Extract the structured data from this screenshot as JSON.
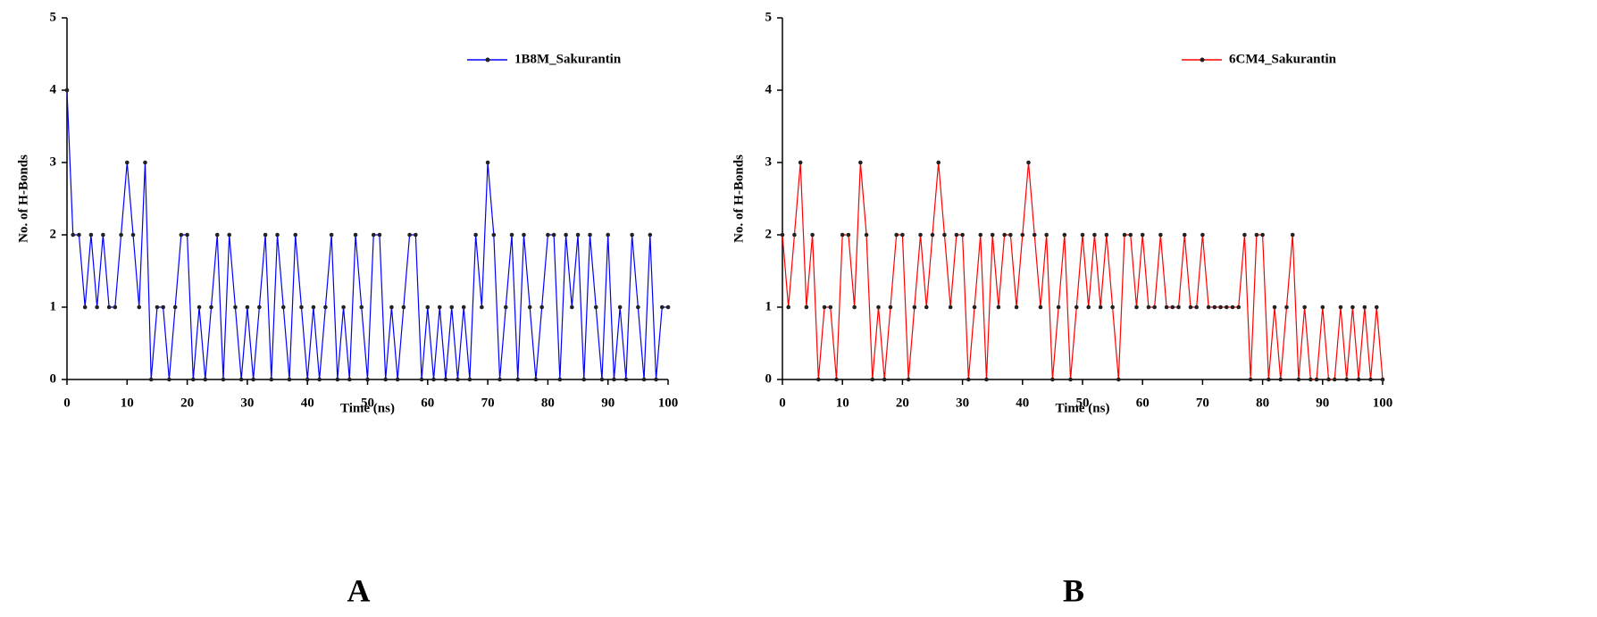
{
  "chart_data": [
    {
      "type": "line",
      "x_label": "Time (ns)",
      "y_label": "No. of H-Bonds",
      "panel_label": "A",
      "legend": "upper right",
      "xlim": [
        0,
        100
      ],
      "ylim": [
        0,
        5
      ],
      "xticks": [
        0,
        10,
        20,
        30,
        40,
        50,
        60,
        70,
        80,
        90,
        100
      ],
      "yticks": [
        0,
        1,
        2,
        3,
        4,
        5
      ],
      "x": [
        0,
        1,
        2,
        3,
        4,
        5,
        6,
        7,
        8,
        9,
        10,
        11,
        12,
        13,
        14,
        15,
        16,
        17,
        18,
        19,
        20,
        21,
        22,
        23,
        24,
        25,
        26,
        27,
        28,
        29,
        30,
        31,
        32,
        33,
        34,
        35,
        36,
        37,
        38,
        39,
        40,
        41,
        42,
        43,
        44,
        45,
        46,
        47,
        48,
        49,
        50,
        51,
        52,
        53,
        54,
        55,
        56,
        57,
        58,
        59,
        60,
        61,
        62,
        63,
        64,
        65,
        66,
        67,
        68,
        69,
        70,
        71,
        72,
        73,
        74,
        75,
        76,
        77,
        78,
        79,
        80,
        81,
        82,
        83,
        84,
        85,
        86,
        87,
        88,
        89,
        90,
        91,
        92,
        93,
        94,
        95,
        96,
        97,
        98,
        99,
        100
      ],
      "series": [
        {
          "name": "1B8M_Sakurantin",
          "color": "#0000ff",
          "values": [
            4,
            2,
            2,
            1,
            2,
            1,
            2,
            1,
            1,
            2,
            3,
            2,
            1,
            3,
            0,
            1,
            1,
            0,
            1,
            2,
            2,
            0,
            1,
            0,
            1,
            2,
            0,
            2,
            1,
            0,
            1,
            0,
            1,
            2,
            0,
            2,
            1,
            0,
            2,
            1,
            0,
            1,
            0,
            1,
            2,
            0,
            1,
            0,
            2,
            1,
            0,
            2,
            2,
            0,
            1,
            0,
            1,
            2,
            2,
            0,
            1,
            0,
            1,
            0,
            1,
            0,
            1,
            0,
            2,
            1,
            3,
            2,
            0,
            1,
            2,
            0,
            2,
            1,
            0,
            1,
            2,
            2,
            0,
            2,
            1,
            2,
            0,
            2,
            1,
            0,
            2,
            0,
            1,
            0,
            2,
            1,
            0,
            2,
            0,
            1,
            1
          ]
        }
      ]
    },
    {
      "type": "line",
      "x_label": "Time (ns)",
      "y_label": "No. of H-Bonds",
      "panel_label": "B",
      "legend": "upper right",
      "xlim": [
        0,
        100
      ],
      "ylim": [
        0,
        5
      ],
      "xticks": [
        0,
        10,
        20,
        30,
        40,
        50,
        60,
        70,
        80,
        90,
        100
      ],
      "yticks": [
        0,
        1,
        2,
        3,
        4,
        5
      ],
      "x": [
        0,
        1,
        2,
        3,
        4,
        5,
        6,
        7,
        8,
        9,
        10,
        11,
        12,
        13,
        14,
        15,
        16,
        17,
        18,
        19,
        20,
        21,
        22,
        23,
        24,
        25,
        26,
        27,
        28,
        29,
        30,
        31,
        32,
        33,
        34,
        35,
        36,
        37,
        38,
        39,
        40,
        41,
        42,
        43,
        44,
        45,
        46,
        47,
        48,
        49,
        50,
        51,
        52,
        53,
        54,
        55,
        56,
        57,
        58,
        59,
        60,
        61,
        62,
        63,
        64,
        65,
        66,
        67,
        68,
        69,
        70,
        71,
        72,
        73,
        74,
        75,
        76,
        77,
        78,
        79,
        80,
        81,
        82,
        83,
        84,
        85,
        86,
        87,
        88,
        89,
        90,
        91,
        92,
        93,
        94,
        95,
        96,
        97,
        98,
        99,
        100
      ],
      "series": [
        {
          "name": "6CM4_Sakurantin",
          "color": "#ff0000",
          "values": [
            2,
            1,
            2,
            3,
            1,
            2,
            0,
            1,
            1,
            0,
            2,
            2,
            1,
            3,
            2,
            0,
            1,
            0,
            1,
            2,
            2,
            0,
            1,
            2,
            1,
            2,
            3,
            2,
            1,
            2,
            2,
            0,
            1,
            2,
            0,
            2,
            1,
            2,
            2,
            1,
            2,
            3,
            2,
            1,
            2,
            0,
            1,
            2,
            0,
            1,
            2,
            1,
            2,
            1,
            2,
            1,
            0,
            2,
            2,
            1,
            2,
            1,
            1,
            2,
            1,
            1,
            1,
            2,
            1,
            1,
            2,
            1,
            1,
            1,
            1,
            1,
            1,
            2,
            0,
            2,
            2,
            0,
            1,
            0,
            1,
            2,
            0,
            1,
            0,
            0,
            1,
            0,
            0,
            1,
            0,
            1,
            0,
            1,
            0,
            1,
            0
          ]
        }
      ]
    }
  ]
}
